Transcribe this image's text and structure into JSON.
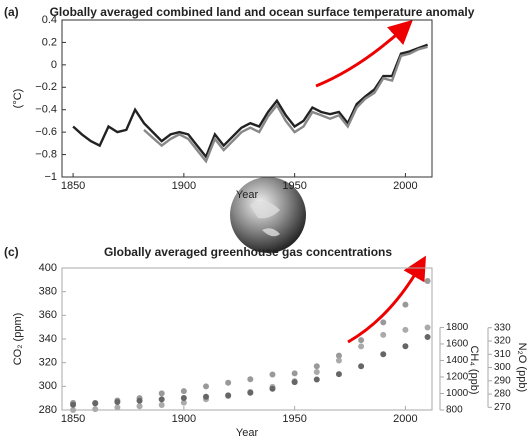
{
  "chart_data": [
    {
      "type": "line",
      "panel": "(a)",
      "title": "Globally averaged combined land and ocean surface temperature anomaly",
      "y_label": "(°C)",
      "x_label": "Year",
      "x": [
        1850,
        1854,
        1858,
        1862,
        1866,
        1870,
        1874,
        1878,
        1882,
        1886,
        1890,
        1894,
        1898,
        1902,
        1906,
        1910,
        1914,
        1918,
        1922,
        1926,
        1930,
        1934,
        1938,
        1942,
        1946,
        1950,
        1954,
        1958,
        1962,
        1966,
        1970,
        1974,
        1978,
        1982,
        1986,
        1990,
        1994,
        1998,
        2002,
        2006,
        2010
      ],
      "series": [
        {
          "color": "#222222",
          "values": [
            -0.55,
            -0.62,
            -0.68,
            -0.72,
            -0.55,
            -0.6,
            -0.58,
            -0.4,
            -0.52,
            -0.6,
            -0.68,
            -0.62,
            -0.6,
            -0.62,
            -0.72,
            -0.82,
            -0.62,
            -0.72,
            -0.64,
            -0.56,
            -0.52,
            -0.55,
            -0.42,
            -0.32,
            -0.45,
            -0.55,
            -0.5,
            -0.38,
            -0.42,
            -0.44,
            -0.42,
            -0.52,
            -0.35,
            -0.28,
            -0.22,
            -0.1,
            -0.1,
            0.1,
            0.12,
            0.15,
            0.18
          ]
        },
        {
          "color": "#888888",
          "values": [
            null,
            null,
            null,
            null,
            null,
            null,
            null,
            null,
            -0.58,
            -0.65,
            -0.72,
            -0.66,
            -0.62,
            -0.66,
            -0.76,
            -0.86,
            -0.66,
            -0.76,
            -0.68,
            -0.6,
            -0.56,
            -0.6,
            -0.46,
            -0.36,
            -0.5,
            -0.6,
            -0.55,
            -0.42,
            -0.45,
            -0.48,
            -0.45,
            -0.55,
            -0.38,
            -0.3,
            -0.25,
            -0.12,
            -0.14,
            0.08,
            0.1,
            0.14,
            0.16
          ]
        }
      ],
      "xlim": [
        1845,
        2012
      ],
      "xticks": [
        1850,
        1900,
        1950,
        2000
      ],
      "ylim": [
        -1,
        0.4
      ],
      "yticks": [
        {
          "value": -1,
          "label": "−1"
        },
        {
          "value": -0.8,
          "label": "−0.8"
        },
        {
          "value": -0.6,
          "label": "−0.6"
        },
        {
          "value": -0.4,
          "label": "−0.4"
        },
        {
          "value": -0.2,
          "label": "−0.2"
        },
        0,
        0.2,
        0.4
      ]
    },
    {
      "type": "scatter",
      "panel": "(c)",
      "title": "Globally averaged greenhouse gas concentrations",
      "y_label": "CO₂ (ppm)",
      "y2_label": "CH₄ (ppb)",
      "y3_label": "N₂O (ppb)",
      "x_label": "Year",
      "x": [
        1850,
        1860,
        1870,
        1880,
        1890,
        1900,
        1910,
        1920,
        1930,
        1940,
        1950,
        1960,
        1970,
        1980,
        1990,
        2000,
        2010
      ],
      "series": [
        {
          "color": "#999999",
          "values": [
            286,
            286,
            288,
            290,
            294,
            296,
            300,
            303,
            306,
            310,
            311,
            317,
            326,
            339,
            354,
            369,
            389
          ]
        },
        {
          "color": "#aaaaaa",
          "axis": "y2",
          "values": [
            800,
            810,
            830,
            845,
            860,
            890,
            930,
            970,
            1020,
            1080,
            1150,
            1260,
            1400,
            1570,
            1710,
            1770,
            1800
          ]
        },
        {
          "color": "#666666",
          "axis": "y3",
          "values": [
            272,
            273,
            274,
            275,
            276,
            277,
            278,
            279,
            281,
            284,
            289,
            291,
            295,
            301,
            310,
            316,
            323
          ]
        }
      ],
      "xlim": [
        1845,
        2012
      ],
      "xticks": [
        1850,
        1900,
        1950,
        2000
      ],
      "ylim": [
        280,
        400
      ],
      "yticks": [
        280,
        300,
        320,
        340,
        360,
        380,
        400
      ],
      "y2lim": [
        800,
        2520
      ],
      "y2ticks": [
        800,
        1000,
        1200,
        1400,
        1600,
        1800
      ],
      "y3lim": [
        268,
        375
      ],
      "y3ticks": [
        270,
        280,
        290,
        300,
        310,
        320,
        330
      ]
    }
  ]
}
